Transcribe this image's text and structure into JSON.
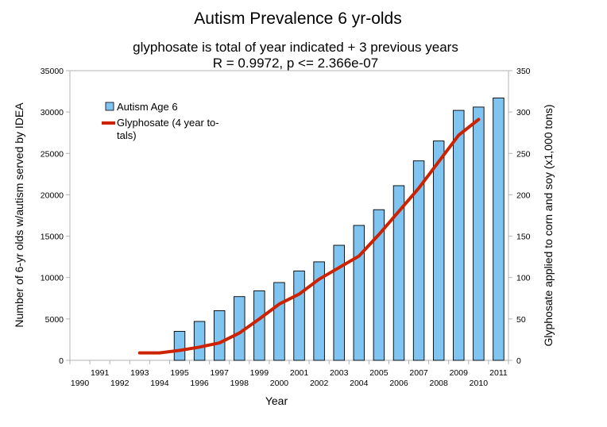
{
  "chart_data": {
    "type": "bar",
    "title": "Autism Prevalence 6 yr-olds",
    "subtitle_lines": [
      "glyphosate is total of year indicated + 3 previous years",
      "R = 0.9972, p <= 2.366e-07"
    ],
    "xlabel": "Year",
    "ylabel": "Number of 6-yr olds w/autism served by IDEA",
    "y2label": "Glyphosate applied to corn and soy (x1,000 tons)",
    "categories": [
      "1990",
      "1991",
      "1992",
      "1993",
      "1994",
      "1995",
      "1996",
      "1997",
      "1998",
      "1999",
      "2000",
      "2001",
      "2002",
      "2003",
      "2004",
      "2005",
      "2006",
      "2007",
      "2008",
      "2009",
      "2010",
      "2011"
    ],
    "ylim": [
      0,
      35000
    ],
    "y_ticks": [
      0,
      5000,
      10000,
      15000,
      20000,
      25000,
      30000,
      35000
    ],
    "y2lim": [
      0,
      350
    ],
    "y2_ticks": [
      0,
      50,
      100,
      150,
      200,
      250,
      300,
      350
    ],
    "grid": false,
    "legend_position": "top-left",
    "series": [
      {
        "name": "Autism Age 6",
        "type": "bar",
        "axis": "left",
        "color": "#80c4f2",
        "values": [
          null,
          null,
          null,
          null,
          null,
          3500,
          4700,
          6000,
          7700,
          8400,
          9400,
          10800,
          11900,
          13900,
          16300,
          18200,
          21100,
          24100,
          26500,
          30200,
          30600,
          31700
        ]
      },
      {
        "name": "Glyphosate (4 year to-tals)",
        "legend_lines": [
          "Glyphosate (4 year to-",
          "tals)"
        ],
        "type": "line",
        "axis": "right",
        "color": "#cc2200",
        "values": [
          null,
          null,
          null,
          9,
          9,
          12,
          16,
          21,
          33,
          50,
          68,
          80,
          98,
          112,
          126,
          152,
          180,
          208,
          240,
          272,
          291,
          null
        ]
      }
    ]
  }
}
